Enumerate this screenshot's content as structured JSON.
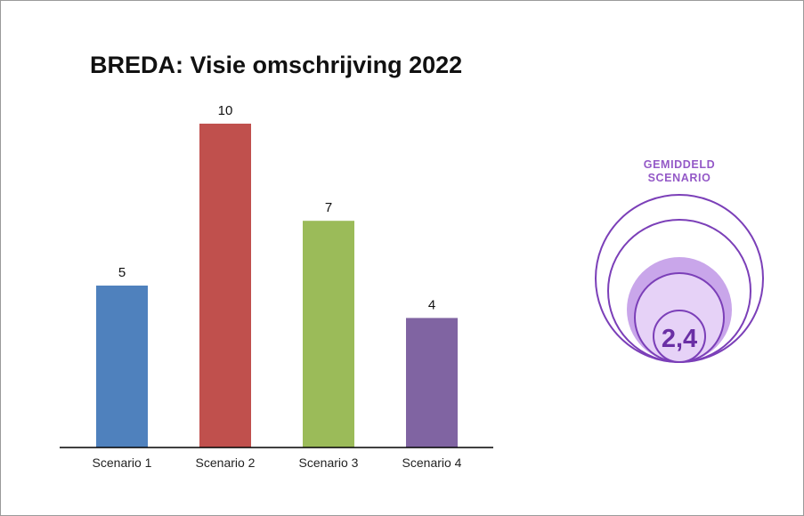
{
  "chart_data": {
    "type": "bar",
    "title": "BREDA: Visie omschrijving 2022",
    "categories": [
      "Scenario 1",
      "Scenario 2",
      "Scenario 3",
      "Scenario 4"
    ],
    "values": [
      5,
      10,
      7,
      4
    ],
    "data_labels": [
      "5",
      "10",
      "7",
      "4"
    ],
    "colors": [
      "#4f81bd",
      "#c0504d",
      "#9bbb59",
      "#8064a2"
    ],
    "ylim": [
      0,
      10
    ],
    "xlabel": "",
    "ylabel": "",
    "grid": false,
    "legend": "none"
  },
  "gauge": {
    "label_line1": "GEMIDDELD",
    "label_line2": "SCENARIO",
    "value": "2,4",
    "accent_color": "#7b3fb8",
    "fill_color": "#c9a6ea",
    "inner_fill": "#e6d2f7"
  }
}
